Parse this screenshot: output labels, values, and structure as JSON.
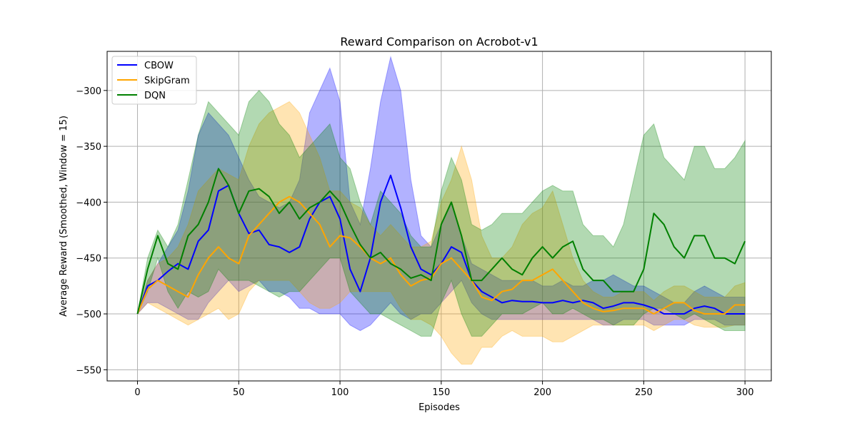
{
  "chart_data": {
    "type": "line",
    "title": "Reward Comparison on Acrobot-v1",
    "xlabel": "Episodes",
    "ylabel": "Average Reward (Smoothed, Window = 15)",
    "xlim": [
      -15,
      313
    ],
    "ylim": [
      -560,
      -265
    ],
    "xticks": [
      0,
      50,
      100,
      150,
      200,
      250,
      300
    ],
    "yticks": [
      -550,
      -500,
      -450,
      -400,
      -350,
      -300
    ],
    "grid": true,
    "legend_position": "top-left",
    "series": [
      {
        "name": "CBOW",
        "color": "#0000ff",
        "x": [
          0,
          5,
          10,
          15,
          20,
          25,
          30,
          35,
          40,
          45,
          50,
          55,
          60,
          65,
          70,
          75,
          80,
          85,
          90,
          95,
          100,
          105,
          110,
          115,
          120,
          125,
          130,
          135,
          140,
          145,
          150,
          155,
          160,
          165,
          170,
          175,
          180,
          185,
          190,
          195,
          200,
          205,
          210,
          215,
          220,
          225,
          230,
          235,
          240,
          245,
          250,
          255,
          260,
          265,
          270,
          275,
          280,
          285,
          290,
          295,
          300
        ],
        "y": [
          -500,
          -475,
          -470,
          -462,
          -455,
          -460,
          -435,
          -425,
          -390,
          -385,
          -410,
          -428,
          -425,
          -438,
          -440,
          -445,
          -440,
          -415,
          -400,
          -395,
          -415,
          -460,
          -480,
          -450,
          -400,
          -376,
          -405,
          -440,
          -460,
          -465,
          -455,
          -440,
          -445,
          -470,
          -480,
          -485,
          -490,
          -488,
          -489,
          -489,
          -490,
          -490,
          -488,
          -490,
          -488,
          -490,
          -495,
          -493,
          -490,
          -490,
          -492,
          -495,
          -500,
          -500,
          -500,
          -495,
          -493,
          -495,
          -500,
          -500,
          -500
        ],
        "upper": [
          -500,
          -470,
          -455,
          -440,
          -425,
          -390,
          -340,
          -320,
          -330,
          -340,
          -360,
          -380,
          -395,
          -400,
          -405,
          -400,
          -380,
          -320,
          -300,
          -280,
          -310,
          -400,
          -420,
          -370,
          -310,
          -270,
          -300,
          -380,
          -430,
          -440,
          -420,
          -400,
          -430,
          -455,
          -460,
          -465,
          -470,
          -470,
          -470,
          -470,
          -475,
          -475,
          -470,
          -475,
          -475,
          -470,
          -470,
          -465,
          -470,
          -475,
          -475,
          -480,
          -485,
          -490,
          -490,
          -480,
          -475,
          -480,
          -485,
          -485,
          -485
        ],
        "lower": [
          -500,
          -490,
          -490,
          -495,
          -500,
          -505,
          -505,
          -490,
          -480,
          -470,
          -480,
          -475,
          -470,
          -480,
          -480,
          -485,
          -495,
          -495,
          -500,
          -500,
          -500,
          -510,
          -515,
          -510,
          -500,
          -490,
          -500,
          -505,
          -500,
          -500,
          -490,
          -480,
          -470,
          -490,
          -500,
          -505,
          -505,
          -505,
          -505,
          -505,
          -505,
          -505,
          -505,
          -505,
          -505,
          -505,
          -510,
          -510,
          -505,
          -505,
          -505,
          -510,
          -510,
          -510,
          -510,
          -505,
          -505,
          -505,
          -510,
          -510,
          -510
        ]
      },
      {
        "name": "SkipGram",
        "color": "#ffa500",
        "x": [
          0,
          5,
          10,
          15,
          20,
          25,
          30,
          35,
          40,
          45,
          50,
          55,
          60,
          65,
          70,
          75,
          80,
          85,
          90,
          95,
          100,
          105,
          110,
          115,
          120,
          125,
          130,
          135,
          140,
          145,
          150,
          155,
          160,
          165,
          170,
          175,
          180,
          185,
          190,
          195,
          200,
          205,
          210,
          215,
          220,
          225,
          230,
          235,
          240,
          245,
          250,
          255,
          260,
          265,
          270,
          275,
          280,
          285,
          290,
          295,
          300
        ],
        "y": [
          -500,
          -478,
          -470,
          -475,
          -480,
          -485,
          -465,
          -450,
          -440,
          -450,
          -455,
          -430,
          -420,
          -410,
          -400,
          -395,
          -400,
          -410,
          -420,
          -440,
          -430,
          -432,
          -440,
          -450,
          -455,
          -450,
          -465,
          -475,
          -470,
          -468,
          -455,
          -450,
          -460,
          -470,
          -485,
          -488,
          -480,
          -478,
          -470,
          -470,
          -465,
          -460,
          -470,
          -480,
          -490,
          -495,
          -498,
          -497,
          -495,
          -495,
          -495,
          -500,
          -495,
          -490,
          -490,
          -497,
          -500,
          -500,
          -500,
          -492,
          -492
        ],
        "upper": [
          -500,
          -470,
          -455,
          -450,
          -440,
          -420,
          -390,
          -380,
          -370,
          -375,
          -380,
          -350,
          -330,
          -320,
          -315,
          -310,
          -320,
          -340,
          -360,
          -390,
          -390,
          -400,
          -405,
          -420,
          -430,
          -420,
          -430,
          -440,
          -440,
          -435,
          -400,
          -380,
          -350,
          -380,
          -430,
          -450,
          -450,
          -440,
          -420,
          -410,
          -405,
          -390,
          -420,
          -450,
          -470,
          -480,
          -485,
          -485,
          -480,
          -480,
          -480,
          -488,
          -480,
          -475,
          -475,
          -480,
          -485,
          -485,
          -485,
          -475,
          -472
        ],
        "lower": [
          -500,
          -490,
          -495,
          -500,
          -505,
          -510,
          -505,
          -500,
          -495,
          -505,
          -500,
          -480,
          -470,
          -470,
          -470,
          -470,
          -480,
          -490,
          -495,
          -495,
          -490,
          -480,
          -480,
          -480,
          -480,
          -480,
          -495,
          -505,
          -505,
          -510,
          -520,
          -535,
          -545,
          -545,
          -530,
          -530,
          -520,
          -515,
          -520,
          -520,
          -520,
          -525,
          -525,
          -520,
          -515,
          -510,
          -510,
          -510,
          -510,
          -510,
          -510,
          -515,
          -510,
          -505,
          -505,
          -510,
          -512,
          -512,
          -512,
          -510,
          -510
        ]
      },
      {
        "name": "DQN",
        "color": "#008000",
        "x": [
          0,
          5,
          10,
          15,
          20,
          25,
          30,
          35,
          40,
          45,
          50,
          55,
          60,
          65,
          70,
          75,
          80,
          85,
          90,
          95,
          100,
          105,
          110,
          115,
          120,
          125,
          130,
          135,
          140,
          145,
          150,
          155,
          160,
          165,
          170,
          175,
          180,
          185,
          190,
          195,
          200,
          205,
          210,
          215,
          220,
          225,
          230,
          235,
          240,
          245,
          250,
          255,
          260,
          265,
          270,
          275,
          280,
          285,
          290,
          295,
          300
        ],
        "y": [
          -500,
          -460,
          -430,
          -455,
          -460,
          -430,
          -420,
          -400,
          -370,
          -385,
          -410,
          -390,
          -388,
          -395,
          -410,
          -400,
          -415,
          -405,
          -400,
          -390,
          -400,
          -420,
          -438,
          -450,
          -445,
          -455,
          -460,
          -468,
          -465,
          -470,
          -420,
          -400,
          -430,
          -470,
          -470,
          -460,
          -450,
          -460,
          -465,
          -450,
          -440,
          -450,
          -440,
          -435,
          -460,
          -470,
          -470,
          -480,
          -480,
          -480,
          -460,
          -410,
          -420,
          -440,
          -450,
          -430,
          -430,
          -450,
          -450,
          -455,
          -435
        ],
        "upper": [
          -500,
          -450,
          -425,
          -440,
          -420,
          -380,
          -340,
          -310,
          -320,
          -330,
          -340,
          -310,
          -300,
          -310,
          -330,
          -340,
          -360,
          -350,
          -340,
          -330,
          -360,
          -370,
          -400,
          -420,
          -390,
          -400,
          -410,
          -430,
          -440,
          -440,
          -390,
          -360,
          -380,
          -420,
          -425,
          -420,
          -410,
          -410,
          -410,
          -400,
          -390,
          -385,
          -390,
          -390,
          -420,
          -430,
          -430,
          -440,
          -420,
          -380,
          -340,
          -330,
          -360,
          -370,
          -380,
          -350,
          -350,
          -370,
          -370,
          -360,
          -345
        ],
        "lower": [
          -500,
          -480,
          -450,
          -480,
          -495,
          -480,
          -485,
          -480,
          -460,
          -470,
          -470,
          -470,
          -475,
          -480,
          -485,
          -480,
          -480,
          -470,
          -460,
          -450,
          -450,
          -480,
          -490,
          -500,
          -500,
          -505,
          -510,
          -515,
          -520,
          -520,
          -490,
          -470,
          -500,
          -520,
          -520,
          -510,
          -500,
          -500,
          -500,
          -495,
          -490,
          -500,
          -500,
          -495,
          -500,
          -505,
          -505,
          -510,
          -510,
          -510,
          -500,
          -495,
          -495,
          -500,
          -505,
          -500,
          -505,
          -510,
          -515,
          -515,
          -515
        ]
      }
    ]
  }
}
